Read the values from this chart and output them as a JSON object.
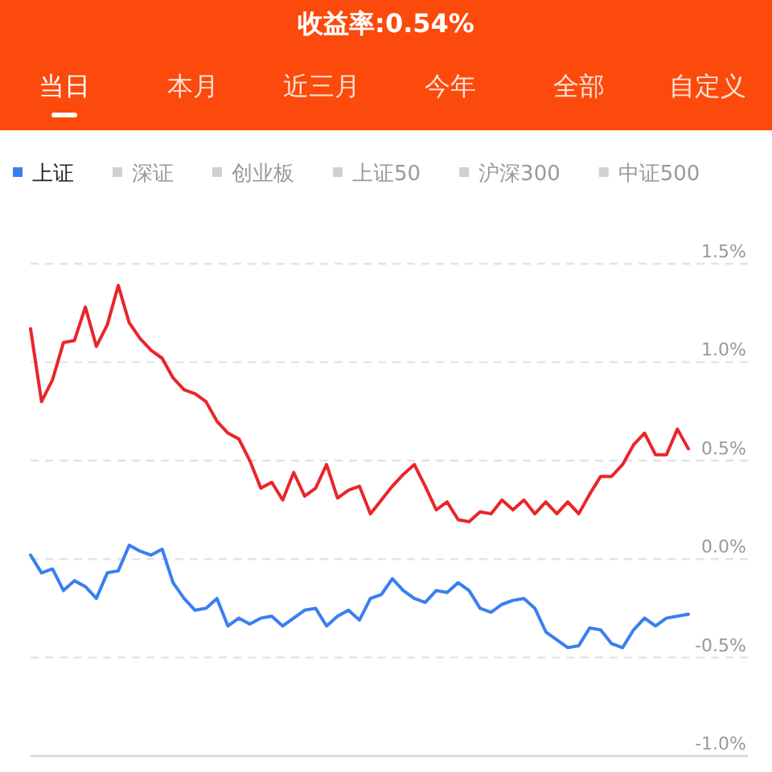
{
  "chart_data": {
    "type": "line",
    "title": "收益率:0.54%",
    "annotations": [
      "当日",
      "本月",
      "近三月",
      "今年",
      "全部",
      "自定义"
    ],
    "legend": "top left",
    "grid": "y",
    "marker": "none",
    "line_style": "solid",
    "categories": [
      null,
      null,
      null,
      null,
      null,
      null,
      null,
      null,
      null,
      null,
      null,
      null,
      null,
      null,
      null,
      null,
      null,
      null,
      null,
      null,
      null,
      null,
      null,
      null,
      null,
      null,
      null,
      null,
      null,
      null,
      null,
      null,
      null,
      null,
      null,
      null,
      null,
      null,
      null,
      null,
      null,
      null,
      null,
      null,
      null,
      null,
      null,
      null,
      null,
      null,
      null,
      null,
      null,
      null,
      null,
      null,
      null,
      null,
      null,
      null,
      null
    ],
    "ylim": [
      -1.0,
      1.5
    ],
    "yticks": [
      {
        "value": 1.5,
        "label": "1.5%"
      },
      {
        "value": 1.0,
        "label": "1.0%"
      },
      {
        "value": 0.5,
        "label": "0.5%"
      },
      {
        "value": 0.0,
        "label": "0.0%"
      },
      {
        "value": -0.5,
        "label": "-0.5%"
      },
      {
        "value": -1.0,
        "label": "-1.0%"
      }
    ],
    "series": [
      {
        "color": "#e8262b",
        "values": [
          1.17,
          0.8,
          0.91,
          1.1,
          1.11,
          1.28,
          1.08,
          1.19,
          1.39,
          1.2,
          1.12,
          1.06,
          1.02,
          0.92,
          0.86,
          0.84,
          0.8,
          0.7,
          0.64,
          0.61,
          0.5,
          0.36,
          0.39,
          0.3,
          0.44,
          0.32,
          0.36,
          0.48,
          0.31,
          0.35,
          0.37,
          0.23,
          0.3,
          0.37,
          0.43,
          0.48,
          0.37,
          0.25,
          0.29,
          0.2,
          0.19,
          0.24,
          0.23,
          0.3,
          0.25,
          0.3,
          0.23,
          0.29,
          0.23,
          0.29,
          0.23,
          0.33,
          0.42,
          0.42,
          0.48,
          0.58,
          0.64,
          0.53,
          0.53,
          0.66,
          0.56
        ]
      },
      {
        "name": "上证",
        "color": "#3a7ff0",
        "values": [
          0.02,
          -0.07,
          -0.05,
          -0.16,
          -0.11,
          -0.14,
          -0.2,
          -0.07,
          -0.06,
          0.07,
          0.04,
          0.02,
          0.05,
          -0.12,
          -0.2,
          -0.26,
          -0.25,
          -0.2,
          -0.34,
          -0.3,
          -0.33,
          -0.3,
          -0.29,
          -0.34,
          -0.3,
          -0.26,
          -0.25,
          -0.34,
          -0.29,
          -0.26,
          -0.31,
          -0.2,
          -0.18,
          -0.1,
          -0.16,
          -0.2,
          -0.22,
          -0.16,
          -0.17,
          -0.12,
          -0.16,
          -0.25,
          -0.27,
          -0.23,
          -0.21,
          -0.2,
          -0.25,
          -0.37,
          -0.41,
          -0.45,
          -0.44,
          -0.35,
          -0.36,
          -0.43,
          -0.45,
          -0.36,
          -0.3,
          -0.34,
          -0.3,
          -0.29,
          -0.28
        ]
      },
      {
        "name": "深证",
        "color": "#d0d0d0",
        "values": [
          null,
          null,
          null,
          null,
          null,
          null,
          null,
          null,
          null,
          null,
          null,
          null,
          null,
          null,
          null,
          null,
          null,
          null,
          null,
          null,
          null,
          null,
          null,
          null,
          null,
          null,
          null,
          null,
          null,
          null,
          null,
          null,
          null,
          null,
          null,
          null,
          null,
          null,
          null,
          null,
          null,
          null,
          null,
          null,
          null,
          null,
          null,
          null,
          null,
          null,
          null,
          null,
          null,
          null,
          null,
          null,
          null,
          null,
          null,
          null,
          null
        ]
      },
      {
        "name": "创业板",
        "color": "#d0d0d0",
        "values": [
          null,
          null,
          null,
          null,
          null,
          null,
          null,
          null,
          null,
          null,
          null,
          null,
          null,
          null,
          null,
          null,
          null,
          null,
          null,
          null,
          null,
          null,
          null,
          null,
          null,
          null,
          null,
          null,
          null,
          null,
          null,
          null,
          null,
          null,
          null,
          null,
          null,
          null,
          null,
          null,
          null,
          null,
          null,
          null,
          null,
          null,
          null,
          null,
          null,
          null,
          null,
          null,
          null,
          null,
          null,
          null,
          null,
          null,
          null,
          null,
          null
        ]
      },
      {
        "name": "上证50",
        "color": "#d0d0d0",
        "values": [
          null,
          null,
          null,
          null,
          null,
          null,
          null,
          null,
          null,
          null,
          null,
          null,
          null,
          null,
          null,
          null,
          null,
          null,
          null,
          null,
          null,
          null,
          null,
          null,
          null,
          null,
          null,
          null,
          null,
          null,
          null,
          null,
          null,
          null,
          null,
          null,
          null,
          null,
          null,
          null,
          null,
          null,
          null,
          null,
          null,
          null,
          null,
          null,
          null,
          null,
          null,
          null,
          null,
          null,
          null,
          null,
          null,
          null,
          null,
          null,
          null
        ]
      },
      {
        "name": "沪深300",
        "color": "#d0d0d0",
        "values": [
          null,
          null,
          null,
          null,
          null,
          null,
          null,
          null,
          null,
          null,
          null,
          null,
          null,
          null,
          null,
          null,
          null,
          null,
          null,
          null,
          null,
          null,
          null,
          null,
          null,
          null,
          null,
          null,
          null,
          null,
          null,
          null,
          null,
          null,
          null,
          null,
          null,
          null,
          null,
          null,
          null,
          null,
          null,
          null,
          null,
          null,
          null,
          null,
          null,
          null,
          null,
          null,
          null,
          null,
          null,
          null,
          null,
          null,
          null,
          null,
          null
        ]
      },
      {
        "name": "中证500",
        "color": "#d0d0d0",
        "values": [
          null,
          null,
          null,
          null,
          null,
          null,
          null,
          null,
          null,
          null,
          null,
          null,
          null,
          null,
          null,
          null,
          null,
          null,
          null,
          null,
          null,
          null,
          null,
          null,
          null,
          null,
          null,
          null,
          null,
          null,
          null,
          null,
          null,
          null,
          null,
          null,
          null,
          null,
          null,
          null,
          null,
          null,
          null,
          null,
          null,
          null,
          null,
          null,
          null,
          null,
          null,
          null,
          null,
          null,
          null,
          null,
          null,
          null,
          null,
          null,
          null
        ]
      }
    ]
  }
}
